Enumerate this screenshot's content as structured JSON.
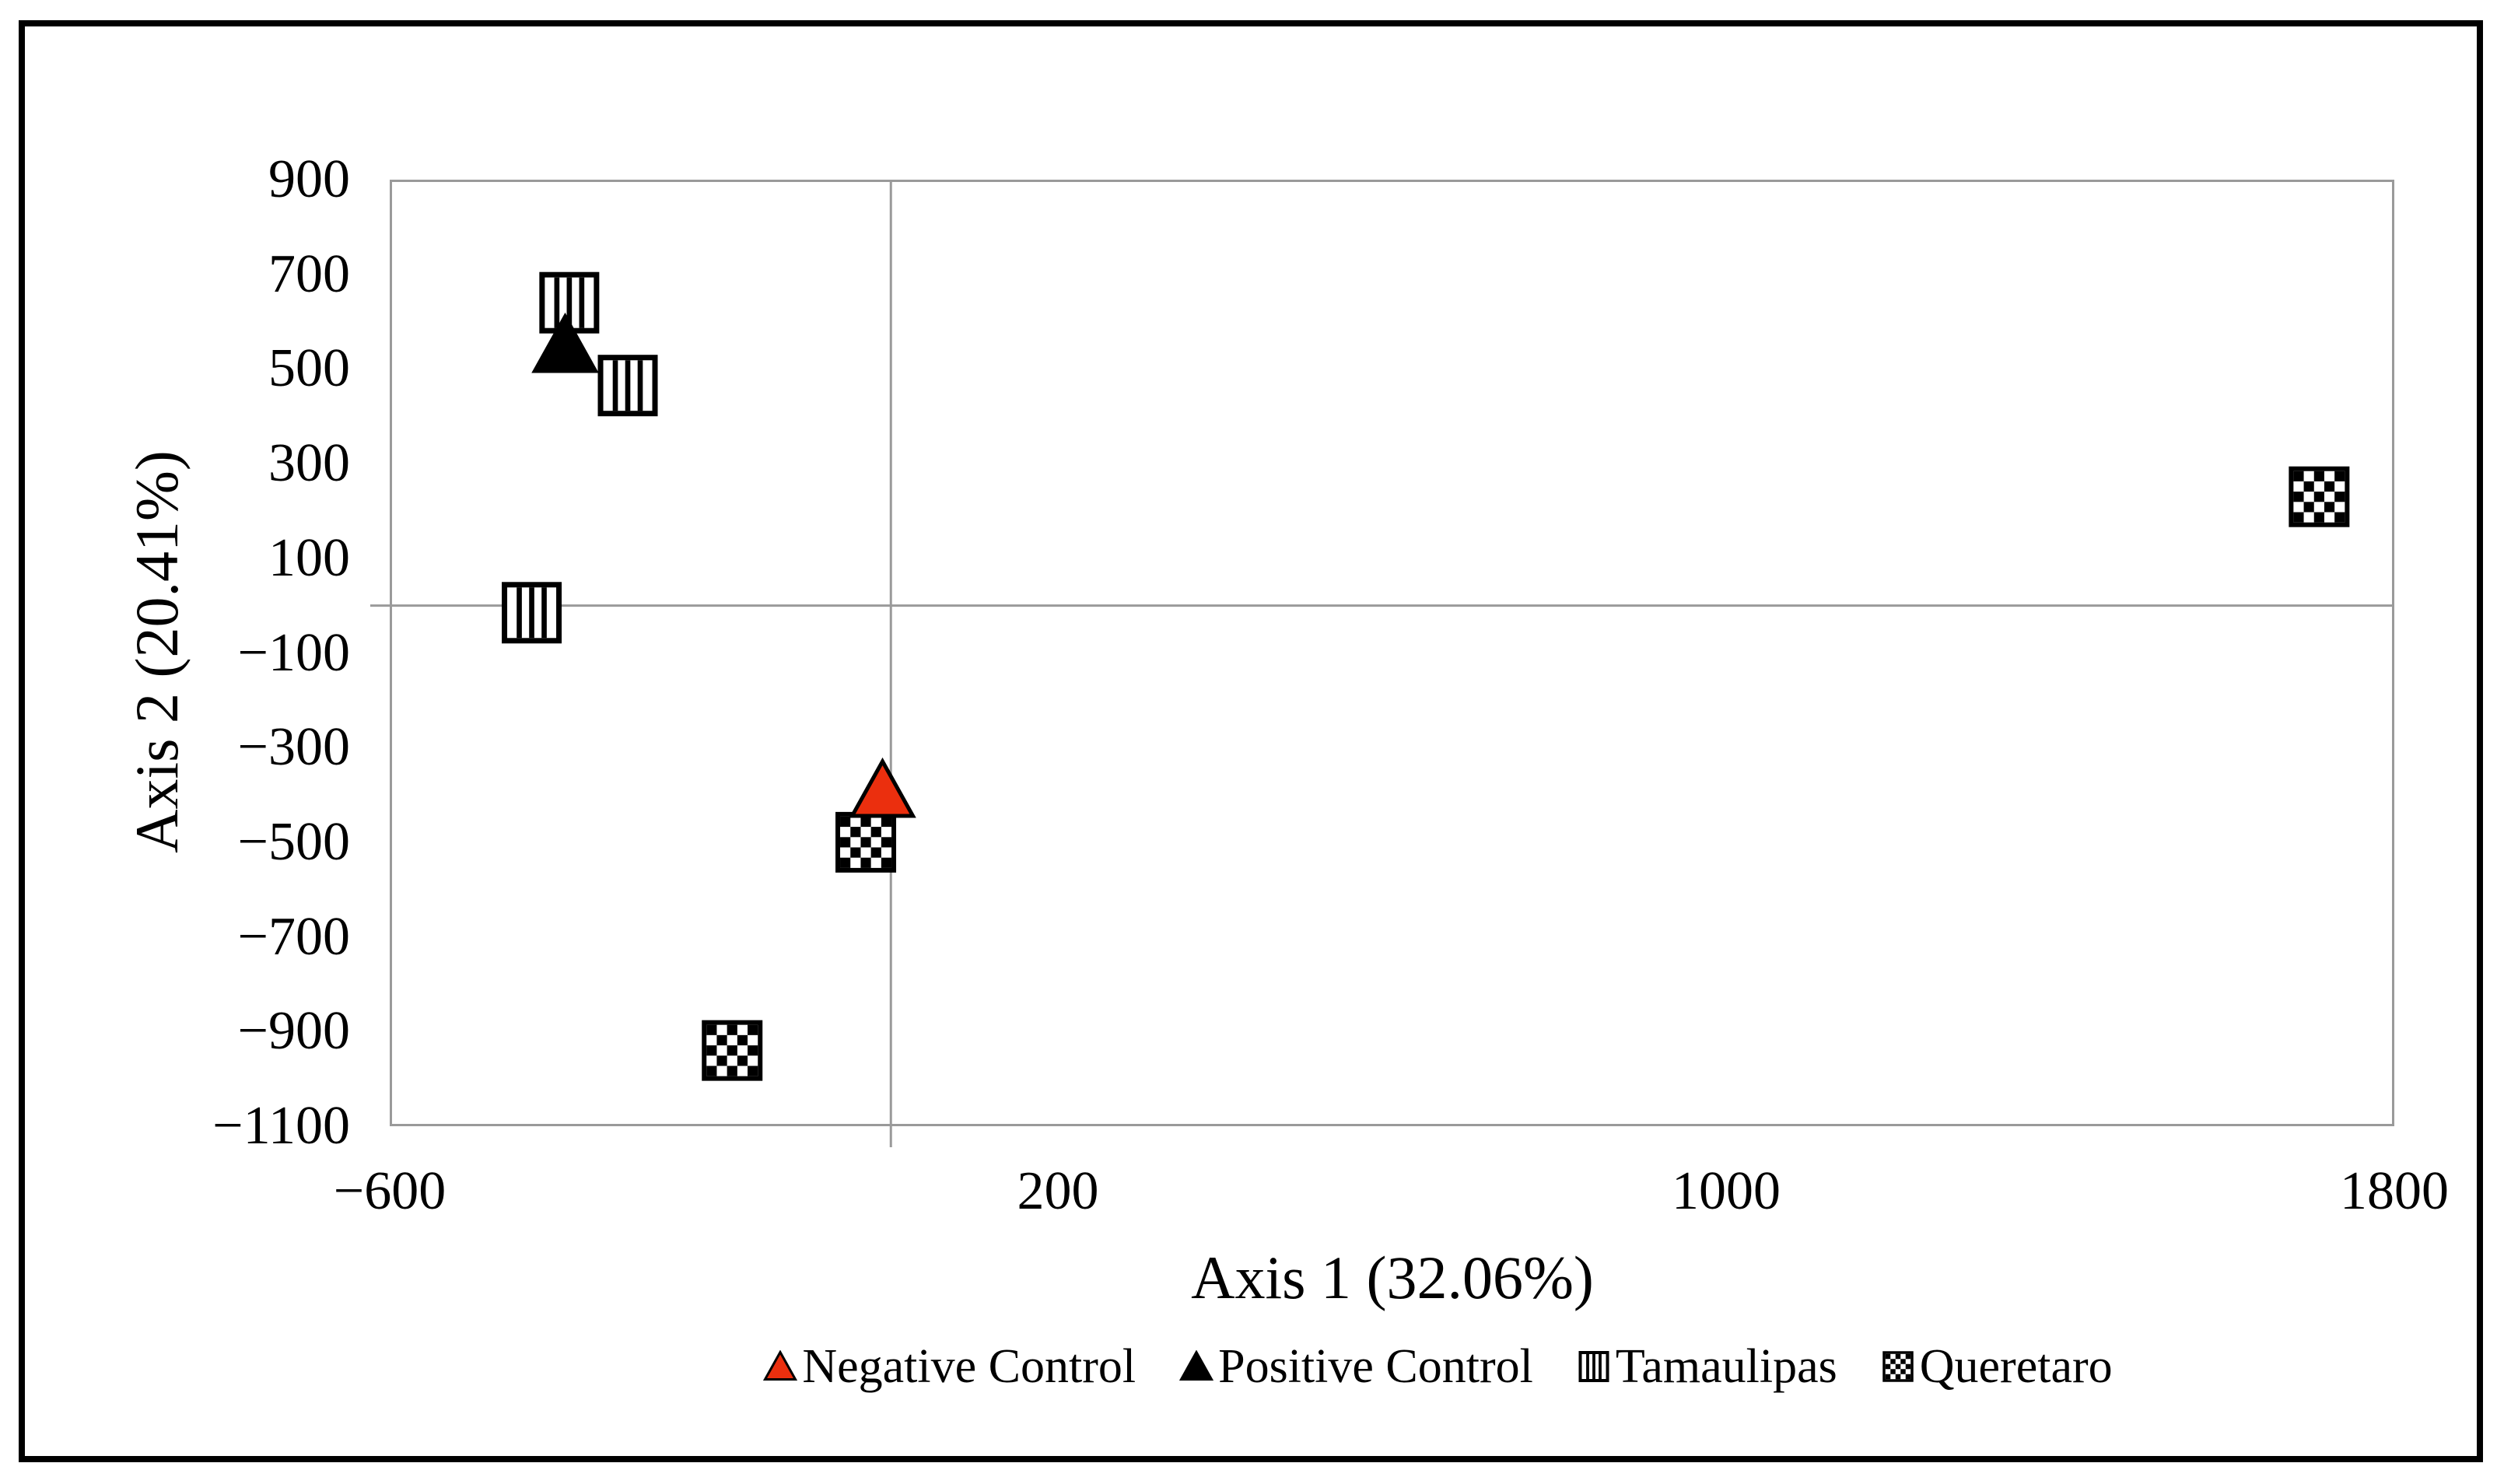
{
  "chart_data": {
    "type": "scatter",
    "title": "",
    "xlabel": "Axis 1 (32.06%)",
    "ylabel": "Axis 2 (20.41%)",
    "xlim": [
      -600,
      1800
    ],
    "ylim": [
      -1100,
      900
    ],
    "xticks": [
      -600,
      200,
      1000,
      1800
    ],
    "yticks": [
      900,
      700,
      500,
      300,
      100,
      -100,
      -300,
      -500,
      -700,
      -900,
      -1100
    ],
    "grid": "zero-axis lines only (vertical at x=0, horizontal at y=0), full gray plot border",
    "legend_position": "bottom-center",
    "colors": {
      "accent_red": "#EB2F0E",
      "grid_gray": "#9A9A9A",
      "frame_black": "#000000",
      "marker_fill_white": "#FFFFFF"
    },
    "series": [
      {
        "name": "Negative Control",
        "marker": "triangle",
        "color": "#EB2F0E",
        "points": [
          [
            -10,
            -390
          ]
        ]
      },
      {
        "name": "Positive Control",
        "marker": "triangle",
        "color": "#000000",
        "points": [
          [
            -390,
            550
          ]
        ]
      },
      {
        "name": "Tamaulipas",
        "marker": "square-vertical-stripes",
        "color": "#000000",
        "points": [
          [
            -385,
            640
          ],
          [
            -315,
            465
          ],
          [
            -430,
            -15
          ]
        ]
      },
      {
        "name": "Queretaro",
        "marker": "square-checker",
        "color": "#000000",
        "points": [
          [
            -30,
            -500
          ],
          [
            -190,
            -940
          ],
          [
            1710,
            230
          ]
        ]
      }
    ]
  }
}
